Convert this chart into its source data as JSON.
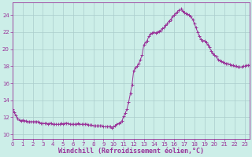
{
  "line_color": "#993399",
  "marker_color": "#993399",
  "bg_color": "#cceee8",
  "grid_color": "#aacccc",
  "text_color": "#993399",
  "xlabel": "Windchill (Refroidissement éolien,°C)",
  "xlim": [
    0,
    23.5
  ],
  "ylim": [
    9.5,
    25.5
  ],
  "yticks": [
    10,
    12,
    14,
    16,
    18,
    20,
    22,
    24
  ],
  "xtick_labels": [
    "0",
    "1",
    "2",
    "3",
    "4",
    "5",
    "6",
    "7",
    "8",
    "9",
    "10",
    "11",
    "12",
    "13",
    "14",
    "15",
    "16",
    "17",
    "18",
    "19",
    "20",
    "21",
    "22",
    "23"
  ],
  "x_values": [
    0.0,
    0.17,
    0.33,
    0.5,
    0.67,
    0.83,
    1.0,
    1.17,
    1.33,
    1.5,
    1.67,
    1.83,
    2.0,
    2.17,
    2.33,
    2.5,
    2.67,
    2.83,
    3.0,
    3.17,
    3.33,
    3.5,
    3.67,
    3.83,
    4.0,
    4.17,
    4.33,
    4.5,
    4.67,
    4.83,
    5.0,
    5.17,
    5.33,
    5.5,
    5.67,
    5.83,
    6.0,
    6.17,
    6.33,
    6.5,
    6.67,
    6.83,
    7.0,
    7.17,
    7.33,
    7.5,
    7.67,
    7.83,
    8.0,
    8.17,
    8.33,
    8.5,
    8.67,
    8.83,
    9.0,
    9.17,
    9.33,
    9.5,
    9.67,
    9.83,
    10.0,
    10.17,
    10.33,
    10.5,
    10.67,
    10.83,
    11.0,
    11.17,
    11.33,
    11.5,
    11.67,
    11.83,
    12.0,
    12.17,
    12.33,
    12.5,
    12.67,
    12.83,
    13.0,
    13.17,
    13.33,
    13.5,
    13.67,
    13.83,
    14.0,
    14.17,
    14.33,
    14.5,
    14.67,
    14.83,
    15.0,
    15.17,
    15.33,
    15.5,
    15.67,
    15.83,
    16.0,
    16.17,
    16.33,
    16.5,
    16.67,
    16.83,
    17.0,
    17.17,
    17.33,
    17.5,
    17.67,
    17.83,
    18.0,
    18.17,
    18.33,
    18.5,
    18.67,
    18.83,
    19.0,
    19.17,
    19.33,
    19.5,
    19.67,
    19.83,
    20.0,
    20.17,
    20.33,
    20.5,
    20.67,
    20.83,
    21.0,
    21.17,
    21.33,
    21.5,
    21.67,
    21.83,
    22.0,
    22.17,
    22.33,
    22.5,
    22.67,
    22.83,
    23.0,
    23.17,
    23.33,
    23.5
  ],
  "y_values": [
    13.0,
    12.6,
    12.2,
    11.9,
    11.7,
    11.6,
    11.7,
    11.6,
    11.6,
    11.5,
    11.5,
    11.5,
    11.5,
    11.5,
    11.5,
    11.5,
    11.4,
    11.3,
    11.3,
    11.3,
    11.3,
    11.2,
    11.3,
    11.3,
    11.2,
    11.2,
    11.2,
    11.2,
    11.2,
    11.3,
    11.2,
    11.3,
    11.3,
    11.3,
    11.2,
    11.2,
    11.2,
    11.2,
    11.2,
    11.3,
    11.2,
    11.2,
    11.2,
    11.2,
    11.2,
    11.1,
    11.1,
    11.1,
    11.0,
    11.0,
    11.0,
    11.0,
    11.0,
    11.0,
    10.9,
    10.9,
    10.9,
    10.9,
    10.9,
    10.8,
    10.9,
    11.0,
    11.2,
    11.3,
    11.4,
    11.6,
    12.1,
    12.5,
    13.0,
    13.8,
    14.8,
    15.8,
    17.5,
    17.8,
    18.0,
    18.3,
    18.8,
    19.3,
    20.5,
    20.8,
    21.0,
    21.5,
    21.8,
    21.9,
    22.0,
    21.9,
    22.0,
    22.1,
    22.2,
    22.4,
    22.5,
    22.8,
    23.0,
    23.3,
    23.5,
    23.8,
    24.0,
    24.2,
    24.4,
    24.6,
    24.7,
    24.5,
    24.3,
    24.2,
    24.1,
    24.0,
    23.8,
    23.5,
    23.0,
    22.5,
    22.0,
    21.5,
    21.2,
    21.0,
    21.0,
    20.8,
    20.5,
    20.2,
    19.8,
    19.5,
    19.3,
    19.1,
    18.8,
    18.7,
    18.6,
    18.5,
    18.4,
    18.3,
    18.3,
    18.2,
    18.1,
    18.1,
    18.0,
    18.0,
    17.9,
    17.9,
    17.9,
    18.0,
    18.0,
    18.1,
    18.1,
    18.1
  ]
}
